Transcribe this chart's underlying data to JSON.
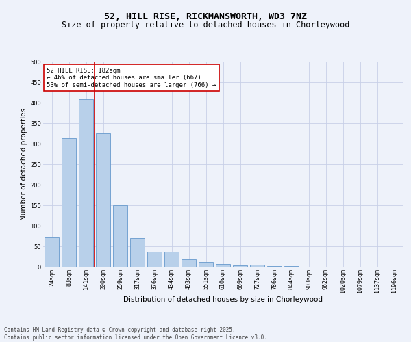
{
  "title_line1": "52, HILL RISE, RICKMANSWORTH, WD3 7NZ",
  "title_line2": "Size of property relative to detached houses in Chorleywood",
  "xlabel": "Distribution of detached houses by size in Chorleywood",
  "ylabel": "Number of detached properties",
  "bar_labels": [
    "24sqm",
    "83sqm",
    "141sqm",
    "200sqm",
    "259sqm",
    "317sqm",
    "376sqm",
    "434sqm",
    "493sqm",
    "551sqm",
    "610sqm",
    "669sqm",
    "727sqm",
    "786sqm",
    "844sqm",
    "903sqm",
    "962sqm",
    "1020sqm",
    "1079sqm",
    "1137sqm",
    "1196sqm"
  ],
  "bar_values": [
    72,
    314,
    409,
    325,
    150,
    70,
    37,
    36,
    18,
    11,
    6,
    4,
    5,
    1,
    1,
    0,
    0,
    0,
    0,
    0,
    0
  ],
  "bar_color": "#b8d0ea",
  "bar_edge_color": "#6699cc",
  "background_color": "#eef2fa",
  "grid_color": "#c8d0e8",
  "vline_color": "#cc0000",
  "annotation_text": "52 HILL RISE: 182sqm\n← 46% of detached houses are smaller (667)\n53% of semi-detached houses are larger (766) →",
  "annotation_box_color": "#ffffff",
  "annotation_box_edge": "#cc0000",
  "ylim": [
    0,
    500
  ],
  "yticks": [
    0,
    50,
    100,
    150,
    200,
    250,
    300,
    350,
    400,
    450,
    500
  ],
  "footer_text": "Contains HM Land Registry data © Crown copyright and database right 2025.\nContains public sector information licensed under the Open Government Licence v3.0.",
  "title_fontsize": 9.5,
  "subtitle_fontsize": 8.5,
  "axis_label_fontsize": 7.5,
  "tick_fontsize": 6,
  "annotation_fontsize": 6.5,
  "footer_fontsize": 5.5
}
